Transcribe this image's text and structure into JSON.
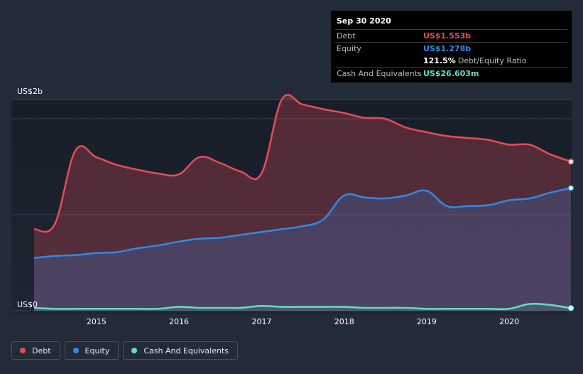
{
  "chart_data": {
    "type": "area",
    "ylabel_top": "US$2b",
    "ylabel_bottom": "US$0",
    "ylim": [
      0,
      2.2
    ],
    "x_ticks": [
      "2015",
      "2016",
      "2017",
      "2018",
      "2019",
      "2020"
    ],
    "series": [
      {
        "name": "Debt",
        "color": "#e64c58",
        "x": [
          "2014-03-31",
          "2014-06-30",
          "2014-09-30",
          "2014-12-31",
          "2015-03-31",
          "2015-06-30",
          "2015-09-30",
          "2015-12-31",
          "2016-03-31",
          "2016-06-30",
          "2016-09-30",
          "2016-12-31",
          "2017-03-31",
          "2017-06-30",
          "2017-09-30",
          "2017-12-31",
          "2018-03-31",
          "2018-06-30",
          "2018-09-30",
          "2018-12-31",
          "2019-03-31",
          "2019-06-30",
          "2019-09-30",
          "2019-12-31",
          "2020-03-31",
          "2020-06-30",
          "2020-09-30"
        ],
        "values": [
          0.85,
          0.9,
          1.67,
          1.6,
          1.52,
          1.47,
          1.43,
          1.42,
          1.6,
          1.54,
          1.45,
          1.43,
          2.2,
          2.15,
          2.1,
          2.06,
          2.01,
          2.0,
          1.91,
          1.86,
          1.82,
          1.8,
          1.78,
          1.73,
          1.73,
          1.63,
          1.553
        ]
      },
      {
        "name": "Equity",
        "color": "#2e8ae6",
        "x": [
          "2014-03-31",
          "2014-06-30",
          "2014-09-30",
          "2014-12-31",
          "2015-03-31",
          "2015-06-30",
          "2015-09-30",
          "2015-12-31",
          "2016-03-31",
          "2016-06-30",
          "2016-09-30",
          "2016-12-31",
          "2017-03-31",
          "2017-06-30",
          "2017-09-30",
          "2017-12-31",
          "2018-03-31",
          "2018-06-30",
          "2018-09-30",
          "2018-12-31",
          "2019-03-31",
          "2019-06-30",
          "2019-09-30",
          "2019-12-31",
          "2020-03-31",
          "2020-06-30",
          "2020-09-30"
        ],
        "values": [
          0.55,
          0.57,
          0.58,
          0.6,
          0.61,
          0.65,
          0.68,
          0.72,
          0.75,
          0.76,
          0.79,
          0.82,
          0.85,
          0.88,
          0.95,
          1.2,
          1.18,
          1.17,
          1.2,
          1.25,
          1.09,
          1.09,
          1.1,
          1.15,
          1.17,
          1.23,
          1.278
        ]
      },
      {
        "name": "Cash And Equivalents",
        "color": "#5ce0cc",
        "x": [
          "2014-03-31",
          "2014-06-30",
          "2014-09-30",
          "2014-12-31",
          "2015-03-31",
          "2015-06-30",
          "2015-09-30",
          "2015-12-31",
          "2016-03-31",
          "2016-06-30",
          "2016-09-30",
          "2016-12-31",
          "2017-03-31",
          "2017-06-30",
          "2017-09-30",
          "2017-12-31",
          "2018-03-31",
          "2018-06-30",
          "2018-09-30",
          "2018-12-31",
          "2019-03-31",
          "2019-06-30",
          "2019-09-30",
          "2019-12-31",
          "2020-03-31",
          "2020-06-30",
          "2020-09-30"
        ],
        "values": [
          0.03,
          0.02,
          0.02,
          0.02,
          0.02,
          0.02,
          0.02,
          0.04,
          0.03,
          0.03,
          0.03,
          0.05,
          0.04,
          0.04,
          0.04,
          0.04,
          0.03,
          0.03,
          0.03,
          0.02,
          0.02,
          0.02,
          0.02,
          0.02,
          0.07,
          0.06,
          0.027
        ]
      }
    ]
  },
  "tooltip": {
    "date": "Sep 30 2020",
    "debt_label": "Debt",
    "debt_value": "US$1.553b",
    "equity_label": "Equity",
    "equity_value": "US$1.278b",
    "ratio_value": "121.5%",
    "ratio_label": "Debt/Equity Ratio",
    "cash_label": "Cash And Equivalents",
    "cash_value": "US$26.603m"
  },
  "legend": [
    {
      "label": "Debt",
      "color": "#e64c58"
    },
    {
      "label": "Equity",
      "color": "#2e8ae6"
    },
    {
      "label": "Cash And Equivalents",
      "color": "#5ce0cc"
    }
  ]
}
